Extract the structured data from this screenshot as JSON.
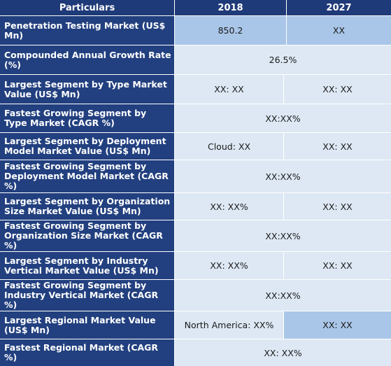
{
  "header": {
    "particulars": "Particulars",
    "year_a": "2018",
    "year_b": "2027"
  },
  "rows": [
    {
      "label": "Penetration Testing Market (US$ Mn)",
      "v2018": "850.2",
      "v2027": "XX"
    },
    {
      "label": "Compounded Annual Growth Rate (%)",
      "merged": "26.5%"
    },
    {
      "label": "Largest Segment by Type Market Value (US$ Mn)",
      "v2018": "XX: XX",
      "v2027": "XX: XX"
    },
    {
      "label": "Fastest Growing Segment by Type Market (CAGR %)",
      "merged": "XX:XX%"
    },
    {
      "label": "Largest Segment by Deployment Model Market Value (US$ Mn)",
      "v2018": "Cloud: XX",
      "v2027": "XX: XX"
    },
    {
      "label": "Fastest Growing Segment by Deployment Model Market (CAGR %)",
      "merged": "XX:XX%"
    },
    {
      "label": "Largest Segment by Organization Size Market Value (US$ Mn)",
      "v2018": "XX: XX%",
      "v2027": "XX: XX"
    },
    {
      "label": "Fastest Growing Segment by Organization Size Market (CAGR %)",
      "merged": "XX:XX%"
    },
    {
      "label": "Largest Segment by Industry Vertical Market Value (US$ Mn)",
      "v2018": "XX: XX%",
      "v2027": "XX: XX"
    },
    {
      "label": "Fastest Growing Segment by Industry Vertical Market (CAGR %)",
      "merged": "XX:XX%"
    },
    {
      "label": "Largest Regional Market Value (US$ Mn)",
      "v2018": "North America: XX%",
      "v2027": "XX: XX"
    },
    {
      "label": "Fastest Regional Market (CAGR %)",
      "merged": "XX: XX%"
    }
  ]
}
